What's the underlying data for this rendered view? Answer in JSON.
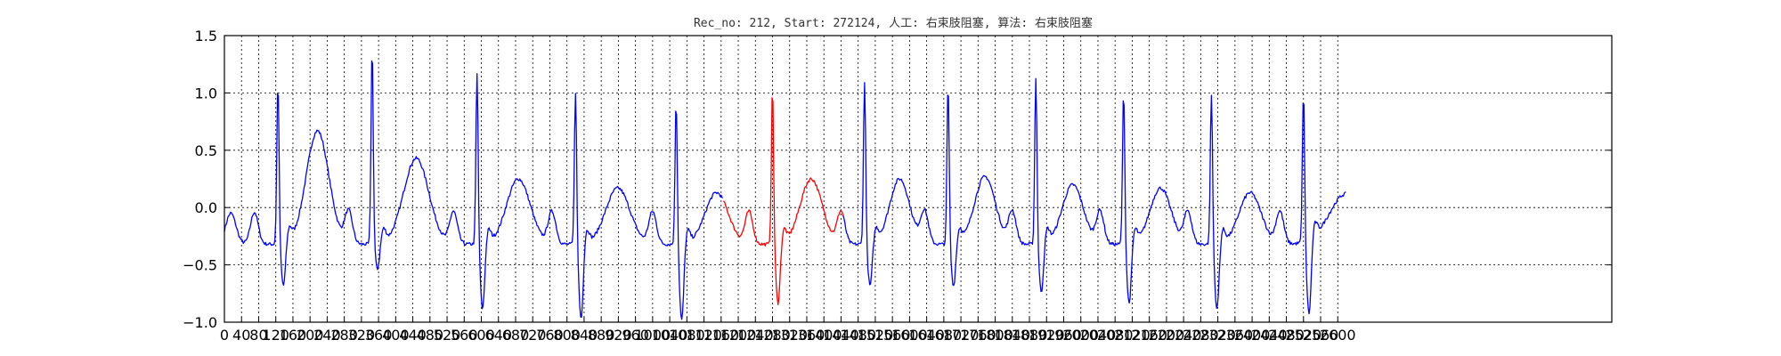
{
  "chart_data": {
    "type": "line",
    "title": "Rec_no: 212, Start: 272124, 人工: 右束肢阻塞, 算法: 右束肢阻塞",
    "xlabel": "",
    "ylabel": "",
    "xlim": [
      0,
      3240
    ],
    "ylim": [
      -1.0,
      1.5
    ],
    "grid": true,
    "yticks": [
      {
        "value": -1.0,
        "label": "−1.0"
      },
      {
        "value": -0.5,
        "label": "−0.5"
      },
      {
        "value": 0.0,
        "label": "0.0"
      },
      {
        "value": 0.5,
        "label": "0.5"
      },
      {
        "value": 1.0,
        "label": "1.0"
      },
      {
        "value": 1.5,
        "label": "1.5"
      }
    ],
    "xticks": [
      0,
      40,
      80,
      120,
      160,
      200,
      240,
      280,
      320,
      360,
      400,
      440,
      480,
      520,
      560,
      600,
      640,
      680,
      720,
      760,
      800,
      840,
      880,
      920,
      960,
      1000,
      1040,
      1080,
      1120,
      1160,
      1200,
      1240,
      1280,
      1320,
      1360,
      1400,
      1440,
      1480,
      1520,
      1560,
      1600,
      1640,
      1680,
      1720,
      1760,
      1800,
      1840,
      1880,
      1920,
      1960,
      2000,
      2040,
      2080,
      2120,
      2160,
      2200,
      2240,
      2280,
      2320,
      2360,
      2400,
      2440,
      2480,
      2520,
      2560,
      2600
    ],
    "segments": [
      {
        "color": "#0000ff",
        "x_range": [
          0,
          1165
        ]
      },
      {
        "color": "#ff0000",
        "x_range": [
          1165,
          1445
        ]
      },
      {
        "color": "#0000ff",
        "x_range": [
          1445,
          2620
        ]
      }
    ],
    "beats": [
      {
        "r": 125,
        "r_amp": 1.05,
        "s_amp": -0.6
      },
      {
        "r": 345,
        "r_amp": 1.35,
        "s_amp": -0.45
      },
      {
        "r": 590,
        "r_amp": 1.13,
        "s_amp": -0.8
      },
      {
        "r": 820,
        "r_amp": 0.98,
        "s_amp": -0.88
      },
      {
        "r": 1055,
        "r_amp": 0.9,
        "s_amp": -0.9
      },
      {
        "r": 1280,
        "r_amp": 1.0,
        "s_amp": -0.75
      },
      {
        "r": 1495,
        "r_amp": 1.05,
        "s_amp": -0.6
      },
      {
        "r": 1690,
        "r_amp": 1.03,
        "s_amp": -0.6
      },
      {
        "r": 1895,
        "r_amp": 1.1,
        "s_amp": -0.65
      },
      {
        "r": 2100,
        "r_amp": 0.98,
        "s_amp": -0.75
      },
      {
        "r": 2305,
        "r_amp": 0.95,
        "s_amp": -0.8
      },
      {
        "r": 2520,
        "r_amp": 0.96,
        "s_amp": -0.88
      }
    ],
    "t_wave_amp": [
      0.72,
      0.48,
      0.3,
      0.22,
      0.18,
      0.3,
      0.3,
      0.32,
      0.25,
      0.22,
      0.18
    ],
    "start_value": 0.0,
    "end_value": 0.12
  }
}
